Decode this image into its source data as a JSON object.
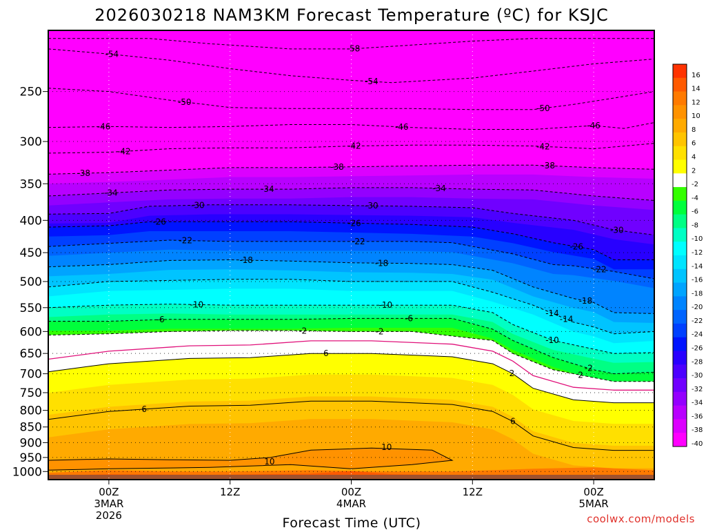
{
  "chart_data": {
    "type": "heatmap",
    "title": "2026030218 NAM3KM Forecast Temperature (ºC) for KSJC",
    "xlabel": "Forecast Time (UTC)",
    "ylabel": "",
    "x_range_hours": [
      -6,
      54
    ],
    "y_range_hpa": [
      200,
      1030
    ],
    "y_scale": "log-pressure (inverted)",
    "yticks": [
      "250",
      "300",
      "350",
      "400",
      "450",
      "500",
      "550",
      "600",
      "650",
      "700",
      "750",
      "800",
      "850",
      "900",
      "950",
      "1000"
    ],
    "xticks": [
      {
        "hour": 0,
        "lines": [
          "00Z",
          "3MAR",
          "2026"
        ]
      },
      {
        "hour": 12,
        "lines": [
          "12Z"
        ]
      },
      {
        "hour": 24,
        "lines": [
          "00Z",
          "4MAR"
        ]
      },
      {
        "hour": 36,
        "lines": [
          "12Z"
        ]
      },
      {
        "hour": 48,
        "lines": [
          "00Z",
          "5MAR"
        ]
      }
    ],
    "grid": true,
    "legend": "colorbar-right",
    "colorbar": {
      "levels": [
        "16",
        "14",
        "12",
        "10",
        "8",
        "6",
        "4",
        "2",
        "-2",
        "-4",
        "-6",
        "-8",
        "-10",
        "-12",
        "-14",
        "-16",
        "-18",
        "-20",
        "-22",
        "-24",
        "-26",
        "-28",
        "-30",
        "-32",
        "-34",
        "-36",
        "-38",
        "-40"
      ],
      "colors": [
        "#ff3300",
        "#ff5a00",
        "#ff7a00",
        "#ff9200",
        "#ffaa00",
        "#ffc400",
        "#ffe000",
        "#ffff00",
        "#ffffff",
        "#33ff00",
        "#00ff3c",
        "#00ff84",
        "#00ffc4",
        "#00ffff",
        "#00e4ff",
        "#00c4ff",
        "#00a4ff",
        "#0084ff",
        "#0064ff",
        "#0040ff",
        "#0014ff",
        "#2800ff",
        "#4c00ff",
        "#7000ff",
        "#9400ff",
        "#b800ff",
        "#dc00ff",
        "#ff00ff"
      ]
    },
    "series": [
      {
        "name": "-58",
        "points": [
          [
            -6,
            206
          ],
          [
            4,
            206
          ],
          [
            10,
            210
          ],
          [
            18,
            214
          ],
          [
            24,
            214
          ],
          [
            30,
            211
          ],
          [
            36,
            208
          ],
          [
            42,
            206
          ],
          [
            48,
            206
          ],
          [
            54,
            206
          ]
        ],
        "label_at_hour": 24.2
      },
      {
        "name": "-54",
        "points": [
          [
            -6,
            214
          ],
          [
            0,
            218
          ],
          [
            6,
            223
          ],
          [
            12,
            230
          ],
          [
            18,
            236
          ],
          [
            24,
            240
          ],
          [
            28,
            242
          ],
          [
            36,
            238
          ],
          [
            42,
            232
          ],
          [
            48,
            226
          ],
          [
            54,
            222
          ]
        ],
        "label_at_hour": 26
      },
      {
        "name": "-50",
        "points": [
          [
            -6,
            247
          ],
          [
            0,
            250
          ],
          [
            6,
            258
          ],
          [
            12,
            265
          ],
          [
            18,
            266
          ],
          [
            24,
            266
          ],
          [
            30,
            266
          ],
          [
            36,
            267
          ],
          [
            42,
            267
          ],
          [
            46,
            262
          ],
          [
            50,
            256
          ],
          [
            54,
            250
          ]
        ],
        "label_at_hour": 43
      },
      {
        "name": "-46",
        "points": [
          [
            -6,
            285
          ],
          [
            0,
            284
          ],
          [
            6,
            285
          ],
          [
            12,
            284
          ],
          [
            18,
            282
          ],
          [
            24,
            282
          ],
          [
            30,
            285
          ],
          [
            36,
            287
          ],
          [
            42,
            287
          ],
          [
            48,
            283
          ],
          [
            51,
            286
          ],
          [
            54,
            280
          ]
        ],
        "label_at_hour": 48
      },
      {
        "name": "-42",
        "points": [
          [
            -6,
            313
          ],
          [
            0,
            312
          ],
          [
            6,
            308
          ],
          [
            12,
            307
          ],
          [
            18,
            307
          ],
          [
            24,
            305
          ],
          [
            30,
            304
          ],
          [
            36,
            304
          ],
          [
            42,
            305
          ],
          [
            48,
            308
          ],
          [
            54,
            302
          ]
        ],
        "label_at_hour": 24.3
      },
      {
        "name": "-38",
        "points": [
          [
            -6,
            338
          ],
          [
            0,
            336
          ],
          [
            6,
            333
          ],
          [
            12,
            330
          ],
          [
            18,
            330
          ],
          [
            24,
            329
          ],
          [
            30,
            328
          ],
          [
            36,
            327
          ],
          [
            42,
            327
          ],
          [
            48,
            330
          ],
          [
            54,
            332
          ]
        ],
        "label_at_hour": 22.6
      },
      {
        "name": "-34",
        "points": [
          [
            -6,
            366
          ],
          [
            0,
            362
          ],
          [
            6,
            358
          ],
          [
            12,
            357
          ],
          [
            18,
            357
          ],
          [
            24,
            355
          ],
          [
            30,
            355
          ],
          [
            36,
            357
          ],
          [
            42,
            358
          ],
          [
            48,
            366
          ],
          [
            54,
            372
          ]
        ],
        "label_at_hour": 15.7
      },
      {
        "name": "-30",
        "points": [
          [
            -6,
            391
          ],
          [
            0,
            390
          ],
          [
            4,
            380
          ],
          [
            10,
            378
          ],
          [
            18,
            378
          ],
          [
            24,
            379
          ],
          [
            30,
            380
          ],
          [
            36,
            382
          ],
          [
            40,
            390
          ],
          [
            46,
            400
          ],
          [
            50,
            414
          ],
          [
            54,
            422
          ]
        ],
        "label_at_hour": 8.8
      },
      {
        "name": "-26",
        "points": [
          [
            -6,
            410
          ],
          [
            0,
            408
          ],
          [
            4,
            402
          ],
          [
            10,
            402
          ],
          [
            18,
            402
          ],
          [
            24,
            404
          ],
          [
            30,
            406
          ],
          [
            36,
            410
          ],
          [
            40,
            420
          ],
          [
            44,
            434
          ],
          [
            48,
            445
          ],
          [
            50,
            462
          ],
          [
            54,
            462
          ]
        ],
        "label_at_hour": 24.3
      },
      {
        "name": "-22",
        "points": [
          [
            -6,
            440
          ],
          [
            0,
            435
          ],
          [
            6,
            430
          ],
          [
            12,
            432
          ],
          [
            18,
            432
          ],
          [
            24,
            432
          ],
          [
            30,
            432
          ],
          [
            34,
            434
          ],
          [
            40,
            452
          ],
          [
            44,
            470
          ],
          [
            46,
            472
          ],
          [
            50,
            482
          ],
          [
            54,
            495
          ]
        ],
        "label_at_hour": 24.7
      },
      {
        "name": "-18",
        "points": [
          [
            -6,
            474
          ],
          [
            0,
            470
          ],
          [
            6,
            463
          ],
          [
            12,
            462
          ],
          [
            18,
            464
          ],
          [
            24,
            467
          ],
          [
            30,
            468
          ],
          [
            34,
            470
          ],
          [
            38,
            480
          ],
          [
            42,
            510
          ],
          [
            46,
            532
          ],
          [
            48,
            540
          ],
          [
            50,
            560
          ],
          [
            54,
            562
          ]
        ],
        "label_at_hour": 13.6
      },
      {
        "name": "-14",
        "points": [
          [
            -6,
            510
          ],
          [
            0,
            500
          ],
          [
            6,
            498
          ],
          [
            12,
            496
          ],
          [
            18,
            496
          ],
          [
            24,
            500
          ],
          [
            30,
            500
          ],
          [
            34,
            500
          ],
          [
            38,
            520
          ],
          [
            42,
            545
          ],
          [
            46,
            580
          ],
          [
            48,
            590
          ],
          [
            50,
            605
          ],
          [
            54,
            600
          ]
        ],
        "label_at_hour": 45.3
      },
      {
        "name": "-10",
        "points": [
          [
            -6,
            550
          ],
          [
            0,
            545
          ],
          [
            6,
            543
          ],
          [
            12,
            545
          ],
          [
            18,
            545
          ],
          [
            24,
            545
          ],
          [
            30,
            545
          ],
          [
            34,
            545
          ],
          [
            38,
            560
          ],
          [
            40,
            585
          ],
          [
            44,
            620
          ],
          [
            48,
            640
          ],
          [
            50,
            650
          ],
          [
            54,
            648
          ]
        ],
        "label_at_hour": 8.7
      },
      {
        "name": "-6",
        "points": [
          [
            -6,
            578
          ],
          [
            0,
            578
          ],
          [
            6,
            574
          ],
          [
            12,
            574
          ],
          [
            18,
            574
          ],
          [
            24,
            572
          ],
          [
            30,
            572
          ],
          [
            34,
            572
          ],
          [
            38,
            595
          ],
          [
            40,
            620
          ],
          [
            44,
            660
          ],
          [
            48,
            690
          ],
          [
            50,
            700
          ],
          [
            54,
            696
          ]
        ],
        "label_at_hour": 5.1
      },
      {
        "name": "-2",
        "points": [
          [
            -6,
            608
          ],
          [
            0,
            605
          ],
          [
            6,
            600
          ],
          [
            12,
            598
          ],
          [
            18,
            598
          ],
          [
            24,
            600
          ],
          [
            30,
            600
          ],
          [
            34,
            610
          ],
          [
            38,
            620
          ],
          [
            40,
            650
          ],
          [
            44,
            690
          ],
          [
            48,
            710
          ],
          [
            50,
            720
          ],
          [
            54,
            720
          ]
        ],
        "label_at_hour": 19.2
      },
      {
        "name": "2",
        "points": [
          [
            -6,
            695
          ],
          [
            0,
            675
          ],
          [
            8,
            662
          ],
          [
            14,
            660
          ],
          [
            20,
            650
          ],
          [
            26,
            650
          ],
          [
            34,
            658
          ],
          [
            38,
            675
          ],
          [
            40,
            700
          ],
          [
            42,
            738
          ],
          [
            46,
            770
          ],
          [
            50,
            778
          ],
          [
            54,
            778
          ]
        ],
        "label_at_hour": 39.9
      }
    ],
    "contour_labels": [
      "-38",
      "-38",
      "-34",
      "-34",
      "-30",
      "-30",
      "-30",
      "-26",
      "-26",
      "-22",
      "-22",
      "-22",
      "-18",
      "-18",
      "-14",
      "-14",
      "-10",
      "-10",
      "-10",
      "-6",
      "-6",
      "-2",
      "-2",
      "2",
      "6",
      "6",
      "6",
      "10",
      "10",
      "-46",
      "-46",
      "-50",
      "-54",
      "-42",
      "-42"
    ],
    "fill_bands": [
      {
        "level": "-40",
        "top_hpa": 200,
        "bottom_hpa": 340
      },
      {
        "level": "-2",
        "top_hpa": 640,
        "bottom_hpa": 720
      }
    ],
    "surface_brown": "#a0522d"
  },
  "credit": "coolwx.com/models"
}
